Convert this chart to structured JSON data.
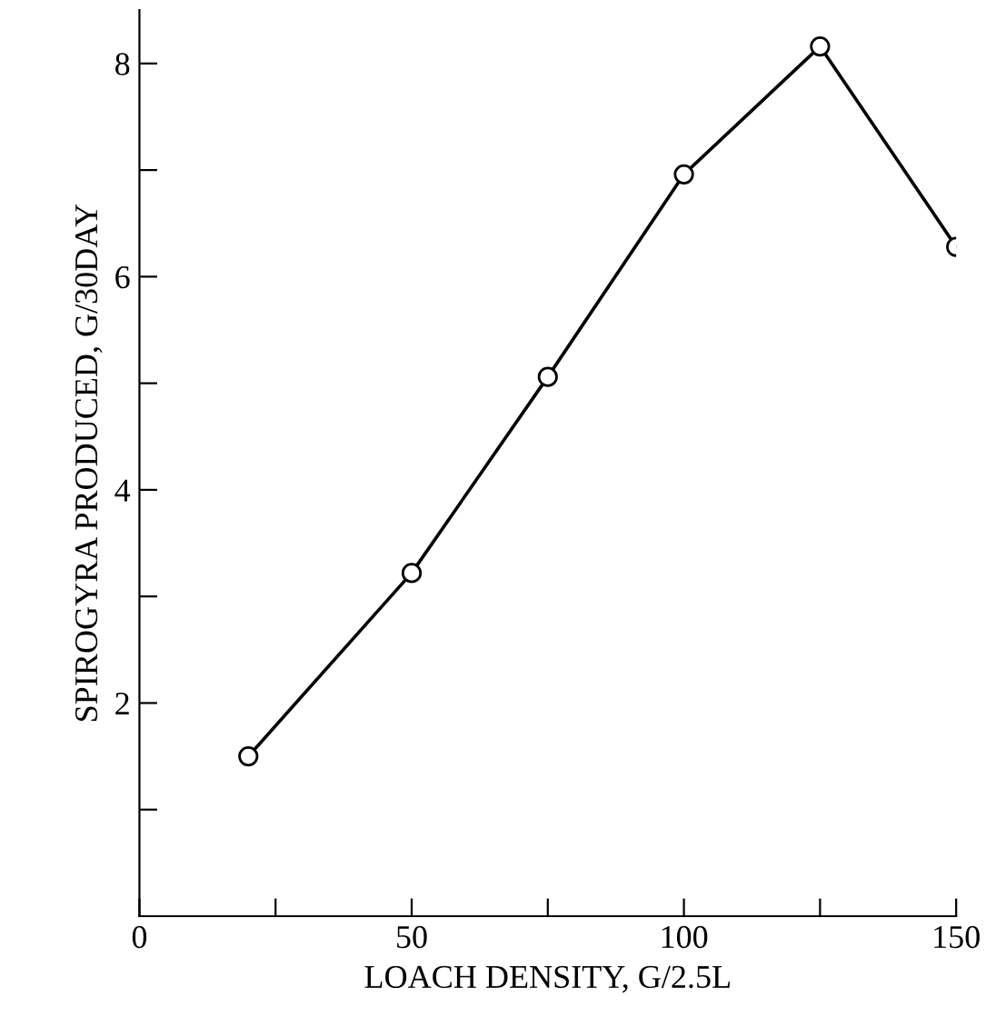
{
  "chart_data": {
    "type": "line",
    "xlabel": "LOACH DENSITY, G/2.5L",
    "ylabel": "SPIROGYRA PRODUCED, G/30DAY",
    "x": [
      20,
      50,
      75,
      100,
      125,
      150
    ],
    "series": [
      {
        "color": "#000000",
        "values": [
          1.5,
          3.22,
          5.06,
          6.96,
          8.16,
          6.28
        ]
      }
    ],
    "xlim": [
      0,
      150
    ],
    "ylim": [
      0,
      8.5
    ],
    "xticks": [
      0,
      {
        "value": 25,
        "label": null
      },
      50,
      {
        "value": 75,
        "label": null
      },
      100,
      {
        "value": 125,
        "label": null
      },
      150
    ],
    "yticks": [
      {
        "value": 1,
        "label": null
      },
      2,
      {
        "value": 3,
        "label": null
      },
      4,
      {
        "value": 5,
        "label": null
      },
      6,
      {
        "value": 7,
        "label": null
      },
      8
    ],
    "marker": "circle",
    "line_style": "solid",
    "grid": false,
    "legend": false
  }
}
